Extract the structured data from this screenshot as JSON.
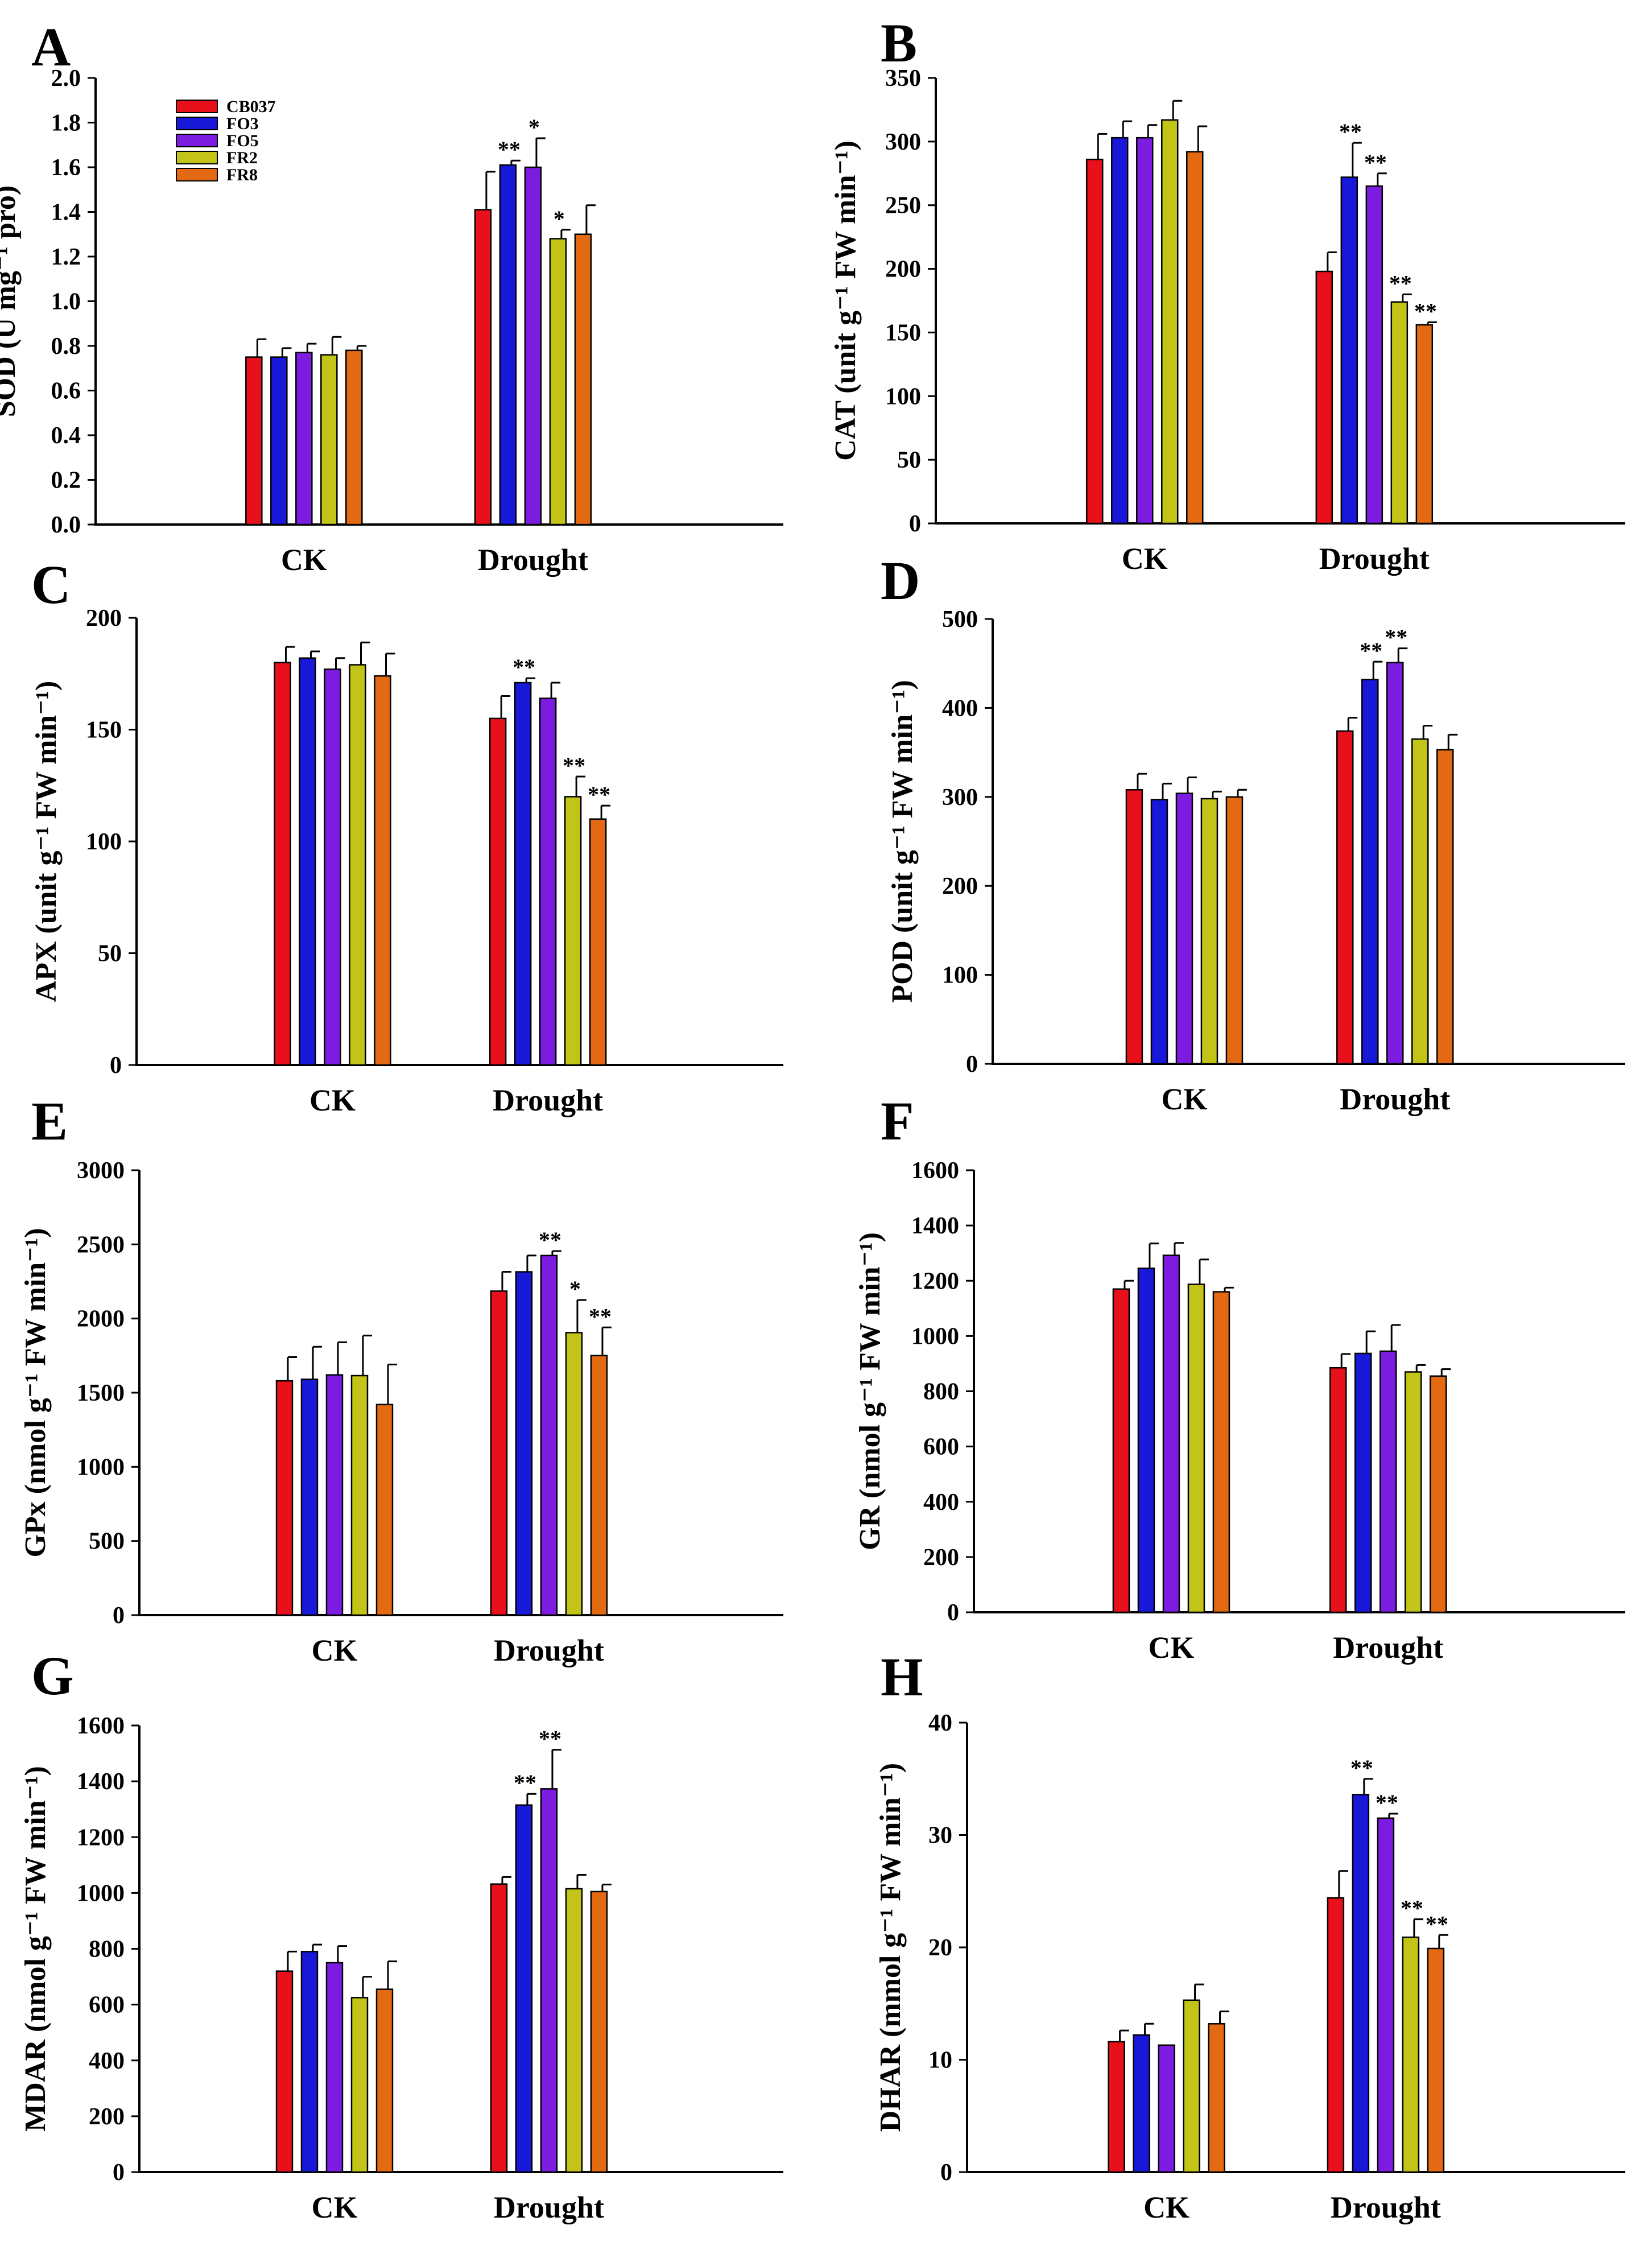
{
  "figure": {
    "series_names": [
      "CB037",
      "FO3",
      "FO5",
      "FR2",
      "FR8"
    ],
    "colors": {
      "CB037": "#e8101a",
      "FO3": "#1818d8",
      "FO5": "#7b1ce0",
      "FR2": "#c2c418",
      "FR8": "#e36a12"
    }
  },
  "chart_data": [
    {
      "panel": "A",
      "type": "bar",
      "ylabel": "SOD (U mg⁻¹ pro)",
      "ylim": [
        0,
        2.0
      ],
      "yticks": [
        "0.0",
        "0.2",
        "0.4",
        "0.6",
        "0.8",
        "1.0",
        "1.2",
        "1.4",
        "1.6",
        "1.8",
        "2.0"
      ],
      "categories": [
        "CK",
        "Drought"
      ],
      "legend": "top-left",
      "series": [
        {
          "name": "CB037",
          "values": [
            0.75,
            1.41
          ],
          "errors": [
            0.08,
            0.17
          ],
          "sig": [
            "",
            ""
          ]
        },
        {
          "name": "FO3",
          "values": [
            0.75,
            1.61
          ],
          "errors": [
            0.04,
            0.02
          ],
          "sig": [
            "",
            "**"
          ]
        },
        {
          "name": "FO5",
          "values": [
            0.77,
            1.6
          ],
          "errors": [
            0.04,
            0.13
          ],
          "sig": [
            "",
            "*"
          ]
        },
        {
          "name": "FR2",
          "values": [
            0.76,
            1.28
          ],
          "errors": [
            0.08,
            0.04
          ],
          "sig": [
            "",
            "*"
          ]
        },
        {
          "name": "FR8",
          "values": [
            0.78,
            1.3
          ],
          "errors": [
            0.02,
            0.13
          ],
          "sig": [
            "",
            ""
          ]
        }
      ]
    },
    {
      "panel": "B",
      "type": "bar",
      "ylabel": "CAT (unit g⁻¹ FW min⁻¹)",
      "ylim": [
        0,
        350
      ],
      "yticks": [
        "0",
        "50",
        "100",
        "150",
        "200",
        "250",
        "300",
        "350"
      ],
      "categories": [
        "CK",
        "Drought"
      ],
      "series": [
        {
          "name": "CB037",
          "values": [
            286,
            198
          ],
          "errors": [
            20,
            15
          ],
          "sig": [
            "",
            ""
          ]
        },
        {
          "name": "FO3",
          "values": [
            303,
            272
          ],
          "errors": [
            13,
            27
          ],
          "sig": [
            "",
            "**"
          ]
        },
        {
          "name": "FO5",
          "values": [
            303,
            265
          ],
          "errors": [
            10,
            10
          ],
          "sig": [
            "",
            "**"
          ]
        },
        {
          "name": "FR2",
          "values": [
            317,
            174
          ],
          "errors": [
            15,
            6
          ],
          "sig": [
            "",
            "**"
          ]
        },
        {
          "name": "FR8",
          "values": [
            292,
            156
          ],
          "errors": [
            20,
            2
          ],
          "sig": [
            "",
            "**"
          ]
        }
      ]
    },
    {
      "panel": "C",
      "type": "bar",
      "ylabel": "APX (unit g⁻¹ FW min⁻¹)",
      "ylim": [
        0,
        200
      ],
      "yticks": [
        "0",
        "50",
        "100",
        "150",
        "200"
      ],
      "categories": [
        "CK",
        "Drought"
      ],
      "series": [
        {
          "name": "CB037",
          "values": [
            180,
            155
          ],
          "errors": [
            7,
            10
          ],
          "sig": [
            "",
            ""
          ]
        },
        {
          "name": "FO3",
          "values": [
            182,
            171
          ],
          "errors": [
            3,
            2
          ],
          "sig": [
            "",
            "**"
          ]
        },
        {
          "name": "FO5",
          "values": [
            177,
            164
          ],
          "errors": [
            5,
            7
          ],
          "sig": [
            "",
            ""
          ]
        },
        {
          "name": "FR2",
          "values": [
            179,
            120
          ],
          "errors": [
            10,
            9
          ],
          "sig": [
            "",
            "**"
          ]
        },
        {
          "name": "FR8",
          "values": [
            174,
            110
          ],
          "errors": [
            10,
            6
          ],
          "sig": [
            "",
            "**"
          ]
        }
      ]
    },
    {
      "panel": "D",
      "type": "bar",
      "ylabel": "POD (unit g⁻¹ FW min⁻¹)",
      "ylim": [
        0,
        500
      ],
      "yticks": [
        "0",
        "100",
        "200",
        "300",
        "400",
        "500"
      ],
      "categories": [
        "CK",
        "Drought"
      ],
      "series": [
        {
          "name": "CB037",
          "values": [
            308,
            374
          ],
          "errors": [
            18,
            15
          ],
          "sig": [
            "",
            ""
          ]
        },
        {
          "name": "FO3",
          "values": [
            297,
            432
          ],
          "errors": [
            18,
            20
          ],
          "sig": [
            "",
            "**"
          ]
        },
        {
          "name": "FO5",
          "values": [
            304,
            451
          ],
          "errors": [
            18,
            16
          ],
          "sig": [
            "",
            "**"
          ]
        },
        {
          "name": "FR2",
          "values": [
            298,
            365
          ],
          "errors": [
            8,
            15
          ],
          "sig": [
            "",
            ""
          ]
        },
        {
          "name": "FR8",
          "values": [
            300,
            353
          ],
          "errors": [
            8,
            17
          ],
          "sig": [
            "",
            ""
          ]
        }
      ]
    },
    {
      "panel": "E",
      "type": "bar",
      "ylabel": "GPx (nmol g⁻¹ FW min⁻¹)",
      "ylim": [
        0,
        3000
      ],
      "yticks": [
        "0",
        "500",
        "1000",
        "1500",
        "2000",
        "2500",
        "3000"
      ],
      "categories": [
        "CK",
        "Drought"
      ],
      "series": [
        {
          "name": "CB037",
          "values": [
            1580,
            2185
          ],
          "errors": [
            160,
            130
          ],
          "sig": [
            "",
            ""
          ]
        },
        {
          "name": "FO3",
          "values": [
            1590,
            2315
          ],
          "errors": [
            220,
            110
          ],
          "sig": [
            "",
            ""
          ]
        },
        {
          "name": "FO5",
          "values": [
            1620,
            2425
          ],
          "errors": [
            220,
            30
          ],
          "sig": [
            "",
            "**"
          ]
        },
        {
          "name": "FR2",
          "values": [
            1615,
            1905
          ],
          "errors": [
            270,
            220
          ],
          "sig": [
            "",
            "*"
          ]
        },
        {
          "name": "FR8",
          "values": [
            1420,
            1750
          ],
          "errors": [
            270,
            190
          ],
          "sig": [
            "",
            "**"
          ]
        }
      ]
    },
    {
      "panel": "F",
      "type": "bar",
      "ylabel": "GR (nmol g⁻¹ FW min⁻¹)",
      "ylim": [
        0,
        1600
      ],
      "yticks": [
        "0",
        "200",
        "400",
        "600",
        "800",
        "1000",
        "1200",
        "1400",
        "1600"
      ],
      "categories": [
        "CK",
        "Drought"
      ],
      "series": [
        {
          "name": "CB037",
          "values": [
            1170,
            885
          ],
          "errors": [
            30,
            50
          ],
          "sig": [
            "",
            ""
          ]
        },
        {
          "name": "FO3",
          "values": [
            1245,
            937
          ],
          "errors": [
            90,
            80
          ],
          "sig": [
            "",
            ""
          ]
        },
        {
          "name": "FO5",
          "values": [
            1292,
            945
          ],
          "errors": [
            45,
            95
          ],
          "sig": [
            "",
            ""
          ]
        },
        {
          "name": "FR2",
          "values": [
            1187,
            870
          ],
          "errors": [
            90,
            25
          ],
          "sig": [
            "",
            ""
          ]
        },
        {
          "name": "FR8",
          "values": [
            1160,
            855
          ],
          "errors": [
            15,
            25
          ],
          "sig": [
            "",
            ""
          ]
        }
      ]
    },
    {
      "panel": "G",
      "type": "bar",
      "ylabel": "MDAR (nmol g⁻¹ FW min⁻¹)",
      "ylim": [
        0,
        1600
      ],
      "yticks": [
        "0",
        "200",
        "400",
        "600",
        "800",
        "1000",
        "1200",
        "1400",
        "1600"
      ],
      "categories": [
        "CK",
        "Drought"
      ],
      "series": [
        {
          "name": "CB037",
          "values": [
            720,
            1032
          ],
          "errors": [
            70,
            25
          ],
          "sig": [
            "",
            ""
          ]
        },
        {
          "name": "FO3",
          "values": [
            790,
            1315
          ],
          "errors": [
            25,
            40
          ],
          "sig": [
            "",
            "**"
          ]
        },
        {
          "name": "FO5",
          "values": [
            750,
            1373
          ],
          "errors": [
            60,
            140
          ],
          "sig": [
            "",
            "**"
          ]
        },
        {
          "name": "FR2",
          "values": [
            625,
            1015
          ],
          "errors": [
            75,
            50
          ],
          "sig": [
            "",
            ""
          ]
        },
        {
          "name": "FR8",
          "values": [
            655,
            1005
          ],
          "errors": [
            100,
            25
          ],
          "sig": [
            "",
            ""
          ]
        }
      ]
    },
    {
      "panel": "H",
      "type": "bar",
      "ylabel": "DHAR (mmol g⁻¹ FW min⁻¹)",
      "ylim": [
        0,
        40
      ],
      "yticks": [
        "0",
        "10",
        "20",
        "30",
        "40"
      ],
      "categories": [
        "CK",
        "Drought"
      ],
      "series": [
        {
          "name": "CB037",
          "values": [
            11.6,
            24.4
          ],
          "errors": [
            1.0,
            2.4
          ],
          "sig": [
            "",
            ""
          ]
        },
        {
          "name": "FO3",
          "values": [
            12.2,
            33.6
          ],
          "errors": [
            1.0,
            1.4
          ],
          "sig": [
            "",
            "**"
          ]
        },
        {
          "name": "FO5",
          "values": [
            11.3,
            31.5
          ],
          "errors": [
            0.0,
            0.4
          ],
          "sig": [
            "",
            "**"
          ]
        },
        {
          "name": "FR2",
          "values": [
            15.3,
            20.9
          ],
          "errors": [
            1.4,
            1.6
          ],
          "sig": [
            "",
            "**"
          ]
        },
        {
          "name": "FR8",
          "values": [
            13.2,
            19.9
          ],
          "errors": [
            1.1,
            1.2
          ],
          "sig": [
            "",
            "**"
          ]
        }
      ]
    }
  ]
}
